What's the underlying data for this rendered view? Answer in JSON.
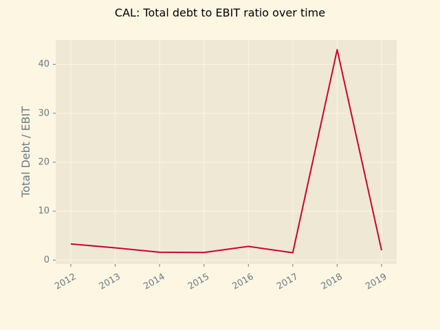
{
  "chart_data": {
    "type": "line",
    "title": "CAL: Total debt to EBIT ratio over time",
    "xlabel": "",
    "ylabel": "Total Debt / EBIT",
    "x": [
      "2012",
      "2013",
      "2014",
      "2015",
      "2016",
      "2017",
      "2018",
      "2019"
    ],
    "series": [
      {
        "values": [
          3.3,
          2.5,
          1.6,
          1.55,
          2.8,
          1.5,
          43.0,
          2.0
        ],
        "color": "#cc0033"
      }
    ],
    "ylim": [
      -0.8,
      45.0
    ],
    "yticks": [
      0,
      10,
      20,
      30,
      40
    ],
    "grid": true,
    "legend": "none",
    "colors": {
      "figure_background": "#fdf6e3",
      "axes_background": "#eee8d5",
      "grid": "#fdf6e3",
      "tick_label": "#657b83",
      "line": "#cc0033"
    }
  }
}
